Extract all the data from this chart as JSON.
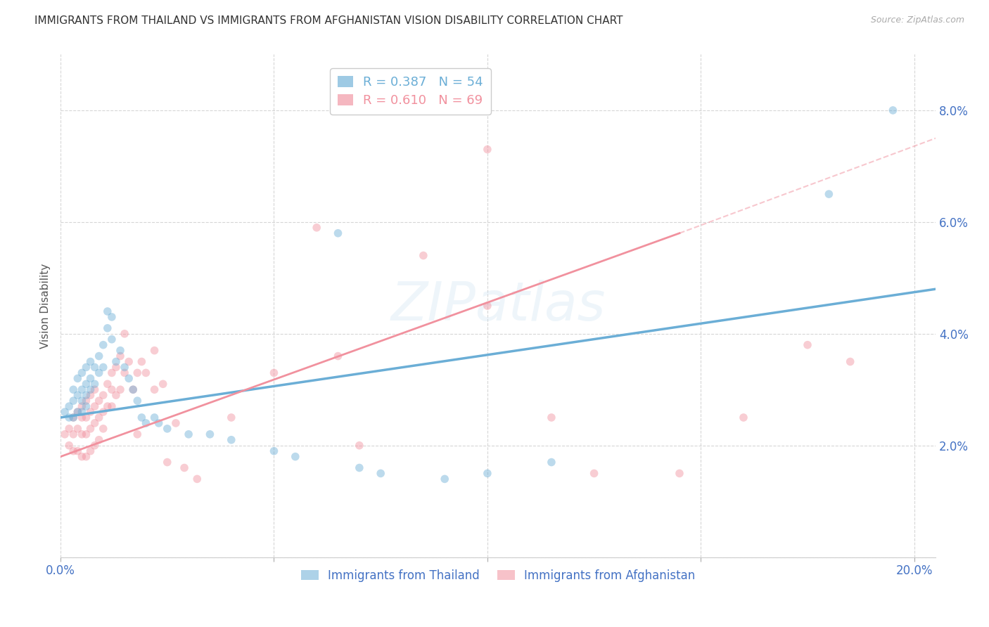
{
  "title": "IMMIGRANTS FROM THAILAND VS IMMIGRANTS FROM AFGHANISTAN VISION DISABILITY CORRELATION CHART",
  "source": "Source: ZipAtlas.com",
  "ylabel": "Vision Disability",
  "xlim": [
    0.0,
    0.205
  ],
  "ylim": [
    0.005,
    0.09
  ],
  "xticks": [
    0.0,
    0.05,
    0.1,
    0.15,
    0.2
  ],
  "yticks": [
    0.0,
    0.02,
    0.04,
    0.06,
    0.08
  ],
  "ytick_labels": [
    "",
    "2.0%",
    "4.0%",
    "6.0%",
    "8.0%"
  ],
  "xtick_labels": [
    "0.0%",
    "",
    "",
    "",
    "20.0%"
  ],
  "thailand_color": "#6baed6",
  "afghanistan_color": "#f1919e",
  "thailand_R": 0.387,
  "thailand_N": 54,
  "afghanistan_R": 0.61,
  "afghanistan_N": 69,
  "watermark": "ZIPatlas",
  "thailand_scatter": [
    [
      0.001,
      0.026
    ],
    [
      0.002,
      0.027
    ],
    [
      0.002,
      0.025
    ],
    [
      0.003,
      0.03
    ],
    [
      0.003,
      0.028
    ],
    [
      0.003,
      0.025
    ],
    [
      0.004,
      0.032
    ],
    [
      0.004,
      0.029
    ],
    [
      0.004,
      0.026
    ],
    [
      0.005,
      0.033
    ],
    [
      0.005,
      0.03
    ],
    [
      0.005,
      0.028
    ],
    [
      0.005,
      0.026
    ],
    [
      0.006,
      0.034
    ],
    [
      0.006,
      0.031
    ],
    [
      0.006,
      0.029
    ],
    [
      0.006,
      0.027
    ],
    [
      0.007,
      0.035
    ],
    [
      0.007,
      0.032
    ],
    [
      0.007,
      0.03
    ],
    [
      0.008,
      0.034
    ],
    [
      0.008,
      0.031
    ],
    [
      0.009,
      0.036
    ],
    [
      0.009,
      0.033
    ],
    [
      0.01,
      0.038
    ],
    [
      0.01,
      0.034
    ],
    [
      0.011,
      0.044
    ],
    [
      0.011,
      0.041
    ],
    [
      0.012,
      0.043
    ],
    [
      0.012,
      0.039
    ],
    [
      0.013,
      0.035
    ],
    [
      0.014,
      0.037
    ],
    [
      0.015,
      0.034
    ],
    [
      0.016,
      0.032
    ],
    [
      0.017,
      0.03
    ],
    [
      0.018,
      0.028
    ],
    [
      0.019,
      0.025
    ],
    [
      0.02,
      0.024
    ],
    [
      0.022,
      0.025
    ],
    [
      0.023,
      0.024
    ],
    [
      0.025,
      0.023
    ],
    [
      0.03,
      0.022
    ],
    [
      0.035,
      0.022
    ],
    [
      0.04,
      0.021
    ],
    [
      0.05,
      0.019
    ],
    [
      0.055,
      0.018
    ],
    [
      0.065,
      0.058
    ],
    [
      0.07,
      0.016
    ],
    [
      0.075,
      0.015
    ],
    [
      0.09,
      0.014
    ],
    [
      0.1,
      0.015
    ],
    [
      0.115,
      0.017
    ],
    [
      0.18,
      0.065
    ],
    [
      0.195,
      0.08
    ]
  ],
  "afghanistan_scatter": [
    [
      0.001,
      0.022
    ],
    [
      0.002,
      0.023
    ],
    [
      0.002,
      0.02
    ],
    [
      0.003,
      0.025
    ],
    [
      0.003,
      0.022
    ],
    [
      0.003,
      0.019
    ],
    [
      0.004,
      0.026
    ],
    [
      0.004,
      0.023
    ],
    [
      0.004,
      0.019
    ],
    [
      0.005,
      0.027
    ],
    [
      0.005,
      0.025
    ],
    [
      0.005,
      0.022
    ],
    [
      0.005,
      0.018
    ],
    [
      0.006,
      0.028
    ],
    [
      0.006,
      0.025
    ],
    [
      0.006,
      0.022
    ],
    [
      0.006,
      0.018
    ],
    [
      0.007,
      0.029
    ],
    [
      0.007,
      0.026
    ],
    [
      0.007,
      0.023
    ],
    [
      0.007,
      0.019
    ],
    [
      0.008,
      0.03
    ],
    [
      0.008,
      0.027
    ],
    [
      0.008,
      0.024
    ],
    [
      0.008,
      0.02
    ],
    [
      0.009,
      0.028
    ],
    [
      0.009,
      0.025
    ],
    [
      0.009,
      0.021
    ],
    [
      0.01,
      0.029
    ],
    [
      0.01,
      0.026
    ],
    [
      0.01,
      0.023
    ],
    [
      0.011,
      0.031
    ],
    [
      0.011,
      0.027
    ],
    [
      0.012,
      0.033
    ],
    [
      0.012,
      0.03
    ],
    [
      0.012,
      0.027
    ],
    [
      0.013,
      0.034
    ],
    [
      0.013,
      0.029
    ],
    [
      0.014,
      0.036
    ],
    [
      0.014,
      0.03
    ],
    [
      0.015,
      0.04
    ],
    [
      0.015,
      0.033
    ],
    [
      0.016,
      0.035
    ],
    [
      0.017,
      0.03
    ],
    [
      0.018,
      0.033
    ],
    [
      0.018,
      0.022
    ],
    [
      0.019,
      0.035
    ],
    [
      0.02,
      0.033
    ],
    [
      0.022,
      0.037
    ],
    [
      0.022,
      0.03
    ],
    [
      0.024,
      0.031
    ],
    [
      0.025,
      0.017
    ],
    [
      0.027,
      0.024
    ],
    [
      0.029,
      0.016
    ],
    [
      0.032,
      0.014
    ],
    [
      0.04,
      0.025
    ],
    [
      0.05,
      0.033
    ],
    [
      0.06,
      0.059
    ],
    [
      0.065,
      0.036
    ],
    [
      0.07,
      0.02
    ],
    [
      0.085,
      0.054
    ],
    [
      0.1,
      0.045
    ],
    [
      0.1,
      0.073
    ],
    [
      0.115,
      0.025
    ],
    [
      0.125,
      0.015
    ],
    [
      0.145,
      0.015
    ],
    [
      0.16,
      0.025
    ],
    [
      0.175,
      0.038
    ],
    [
      0.185,
      0.035
    ]
  ],
  "thailand_trendline": [
    [
      0.0,
      0.025
    ],
    [
      0.205,
      0.048
    ]
  ],
  "afghanistan_trendline_solid": [
    [
      0.0,
      0.018
    ],
    [
      0.145,
      0.058
    ]
  ],
  "afghanistan_trendline_dashed": [
    [
      0.145,
      0.058
    ],
    [
      0.205,
      0.075
    ]
  ],
  "title_fontsize": 11,
  "axis_label_fontsize": 11,
  "tick_fontsize": 12,
  "legend_fontsize": 13,
  "marker_size": 70,
  "marker_alpha": 0.45,
  "grid_color": "#cccccc",
  "background_color": "#ffffff",
  "thailand_label": "Immigrants from Thailand",
  "afghanistan_label": "Immigrants from Afghanistan"
}
